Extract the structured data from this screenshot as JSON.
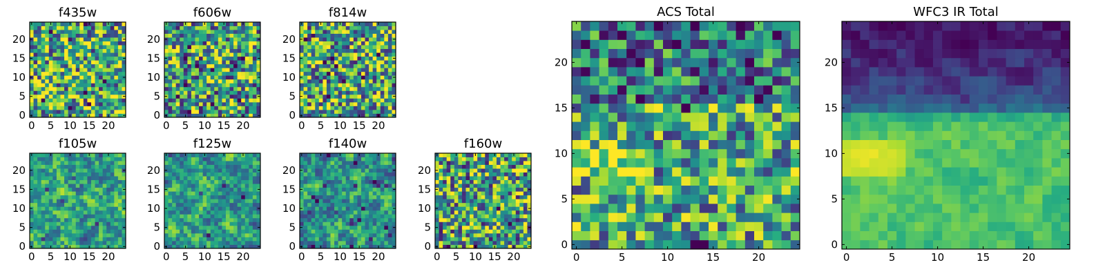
{
  "chart_data": [
    {
      "type": "heatmap",
      "title": "f435w",
      "size": 25,
      "seed": 11,
      "smooth": 0,
      "mode": "flat",
      "base": 0.62,
      "noise": 0.5,
      "xticks": [
        "0",
        "5",
        "10",
        "15",
        "20"
      ],
      "yticks": [
        "0",
        "5",
        "10",
        "15",
        "20"
      ],
      "colormap": "viridis"
    },
    {
      "type": "heatmap",
      "title": "f606w",
      "size": 25,
      "seed": 23,
      "smooth": 0,
      "mode": "flat",
      "base": 0.58,
      "noise": 0.5,
      "xticks": [
        "0",
        "5",
        "10",
        "15",
        "20"
      ],
      "yticks": [
        "0",
        "5",
        "10",
        "15",
        "20"
      ],
      "colormap": "viridis"
    },
    {
      "type": "heatmap",
      "title": "f814w",
      "size": 25,
      "seed": 37,
      "smooth": 0,
      "mode": "flat",
      "base": 0.6,
      "noise": 0.5,
      "xticks": [
        "0",
        "5",
        "10",
        "15",
        "20"
      ],
      "yticks": [
        "0",
        "5",
        "10",
        "15",
        "20"
      ],
      "colormap": "viridis"
    },
    {
      "type": "heatmap",
      "title": "f105w",
      "size": 25,
      "seed": 41,
      "smooth": 1,
      "mode": "flat",
      "base": 0.58,
      "noise": 0.45,
      "xticks": [
        "0",
        "5",
        "10",
        "15",
        "20"
      ],
      "yticks": [
        "0",
        "5",
        "10",
        "15",
        "20"
      ],
      "colormap": "viridis"
    },
    {
      "type": "heatmap",
      "title": "f125w",
      "size": 25,
      "seed": 53,
      "smooth": 1,
      "mode": "flat",
      "base": 0.56,
      "noise": 0.45,
      "xticks": [
        "0",
        "5",
        "10",
        "15",
        "20"
      ],
      "yticks": [
        "0",
        "5",
        "10",
        "15",
        "20"
      ],
      "colormap": "viridis"
    },
    {
      "type": "heatmap",
      "title": "f140w",
      "size": 25,
      "seed": 67,
      "smooth": 1,
      "mode": "flat",
      "base": 0.54,
      "noise": 0.45,
      "xticks": [
        "0",
        "5",
        "10",
        "15",
        "20"
      ],
      "yticks": [
        "0",
        "5",
        "10",
        "15",
        "20"
      ],
      "colormap": "viridis"
    },
    {
      "type": "heatmap",
      "title": "f160w",
      "size": 25,
      "seed": 79,
      "smooth": 0,
      "mode": "flat",
      "base": 0.58,
      "noise": 0.5,
      "xticks": [
        "0",
        "5",
        "10",
        "15",
        "20"
      ],
      "yticks": [
        "0",
        "5",
        "10",
        "15",
        "20"
      ],
      "colormap": "viridis"
    },
    {
      "type": "heatmap",
      "title": "ACS Total",
      "size": 25,
      "seed": 97,
      "smooth": 0,
      "mode": "acs",
      "base": 0.58,
      "noise": 0.42,
      "xticks": [
        "0",
        "5",
        "10",
        "15",
        "20"
      ],
      "yticks": [
        "0",
        "5",
        "10",
        "15",
        "20"
      ],
      "colormap": "viridis"
    },
    {
      "type": "heatmap",
      "title": "WFC3 IR Total",
      "size": 25,
      "seed": 131,
      "smooth": 1,
      "mode": "ir",
      "base": 0.55,
      "noise": 0.3,
      "xticks": [
        "0",
        "5",
        "10",
        "15",
        "20"
      ],
      "yticks": [
        "0",
        "5",
        "10",
        "15",
        "20"
      ],
      "colormap": "viridis"
    }
  ]
}
